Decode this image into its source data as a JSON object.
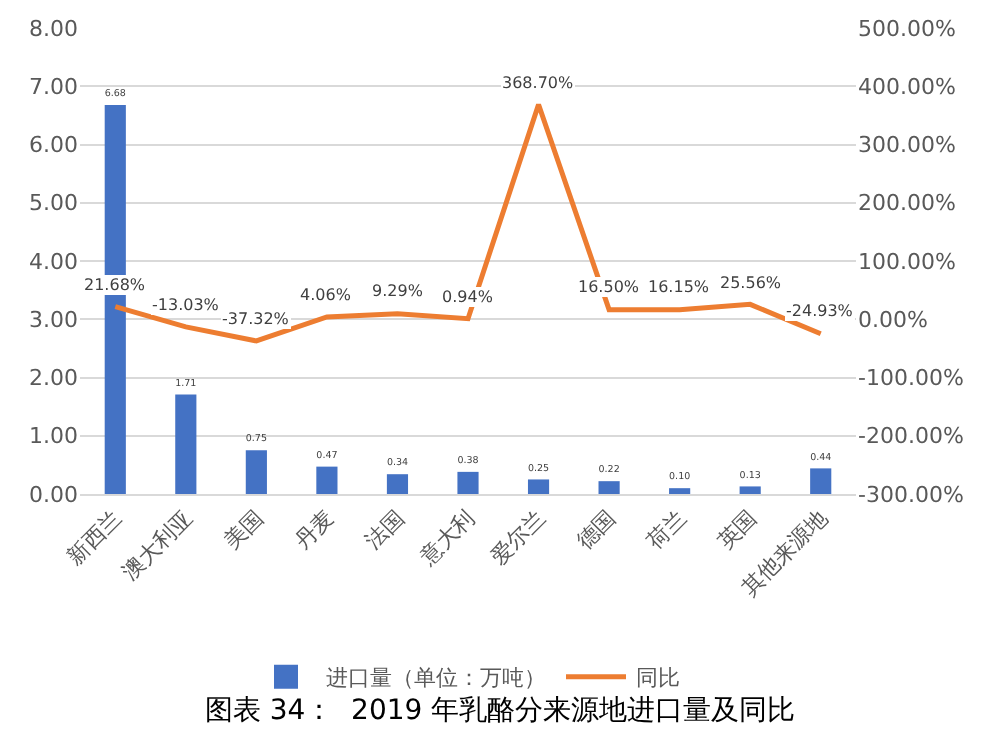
{
  "chart_data": {
    "type": "bar",
    "title": "图表 34：  2019 年乳酪分来源地进口量及同比",
    "categories": [
      "新西兰",
      "澳大利亚",
      "美国",
      "丹麦",
      "法国",
      "意大利",
      "爱尔兰",
      "德国",
      "荷兰",
      "英国",
      "其他来源地"
    ],
    "series": [
      {
        "name": "进口量（单位：万吨）",
        "color": "#4472c4",
        "values": [
          6.68,
          1.71,
          0.75,
          0.47,
          0.34,
          0.38,
          0.25,
          0.22,
          0.1,
          0.13,
          0.44
        ],
        "value_labels": [
          "6.68",
          "1.71",
          "0.75",
          "0.47",
          "0.34",
          "0.38",
          "0.25",
          "0.22",
          "0.10",
          "0.13",
          "0.44"
        ]
      },
      {
        "name": "同比",
        "type": "line",
        "axis": "y2",
        "color": "#ed7d31",
        "values": [
          21.68,
          -13.03,
          -37.32,
          4.06,
          9.29,
          0.94,
          368.7,
          16.5,
          16.15,
          25.56,
          -24.93
        ],
        "value_labels": [
          "21.68%",
          "-13.03%",
          "-37.32%",
          "4.06%",
          "9.29%",
          "0.94%",
          "368.70%",
          "16.50%",
          "16.15%",
          "25.56%",
          "-24.93%"
        ]
      }
    ],
    "ylim": [
      0,
      8
    ],
    "yticks": [
      {
        "value": 0,
        "label": "0.00"
      },
      {
        "value": 1,
        "label": "1.00"
      },
      {
        "value": 2,
        "label": "2.00"
      },
      {
        "value": 3,
        "label": "3.00"
      },
      {
        "value": 4,
        "label": "4.00"
      },
      {
        "value": 5,
        "label": "5.00"
      },
      {
        "value": 6,
        "label": "6.00"
      },
      {
        "value": 7,
        "label": "7.00"
      },
      {
        "value": 8,
        "label": "8.00"
      }
    ],
    "y2lim": [
      -300,
      500
    ],
    "y2ticks": [
      {
        "value": -300,
        "label": "-300.00%"
      },
      {
        "value": -200,
        "label": "-200.00%"
      },
      {
        "value": -100,
        "label": "-100.00%"
      },
      {
        "value": 0,
        "label": "0.00%"
      },
      {
        "value": 100,
        "label": "100.00%"
      },
      {
        "value": 200,
        "label": "200.00%"
      },
      {
        "value": 300,
        "label": "300.00%"
      },
      {
        "value": 400,
        "label": "400.00%"
      },
      {
        "value": 500,
        "label": "500.00%"
      }
    ],
    "grid": "y",
    "legend": "bottom",
    "marker": "none",
    "line_style": "solid"
  }
}
